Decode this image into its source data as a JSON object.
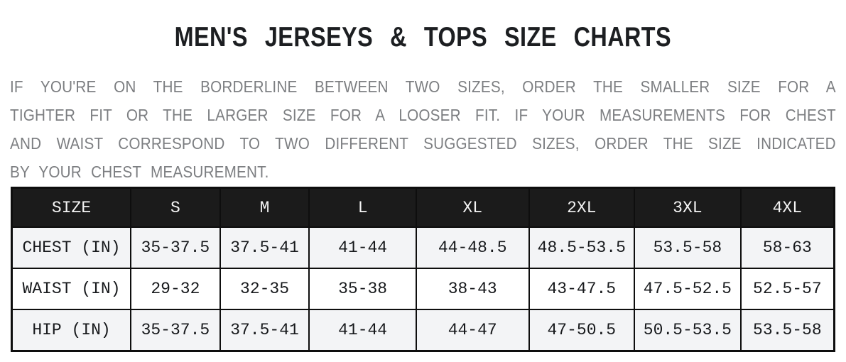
{
  "title": "MEN'S JERSEYS & TOPS SIZE CHARTS",
  "intro": {
    "lines": [
      "IF YOU'RE ON THE BORDERLINE BETWEEN TWO SIZES, ORDER THE SMALLER SIZE FOR A",
      "TIGHTER FIT OR THE LARGER SIZE FOR A LOOSER FIT. IF YOUR MEASUREMENTS FOR CHEST",
      "AND WAIST CORRESPOND TO TWO DIFFERENT SUGGESTED SIZES, ORDER THE SIZE INDICATED",
      "BY YOUR CHEST MEASUREMENT."
    ]
  },
  "size_chart": {
    "columns": [
      "SIZE",
      "S",
      "M",
      "L",
      "XL",
      "2XL",
      "3XL",
      "4XL"
    ],
    "rows": [
      {
        "label": "CHEST (IN)",
        "values": [
          "35-37.5",
          "37.5-41",
          "41-44",
          "44-48.5",
          "48.5-53.5",
          "53.5-58",
          "58-63"
        ]
      },
      {
        "label": "WAIST (IN)",
        "values": [
          "29-32",
          "32-35",
          "35-38",
          "38-43",
          "43-47.5",
          "47.5-52.5",
          "52.5-57"
        ]
      },
      {
        "label": "HIP (IN)",
        "values": [
          "35-37.5",
          "37.5-41",
          "41-44",
          "44-47",
          "47-50.5",
          "50.5-53.5",
          "53.5-58"
        ]
      }
    ]
  },
  "colors": {
    "title_text": "#1c1e21",
    "intro_text": "#7c7e81",
    "table_border": "#0e0e0e",
    "header_bg": "#1b1b1b",
    "header_text": "#f4f4f4",
    "row_shaded_bg": "#f3f4f6",
    "row_plain_bg": "#ffffff",
    "body_text": "#17191c"
  }
}
